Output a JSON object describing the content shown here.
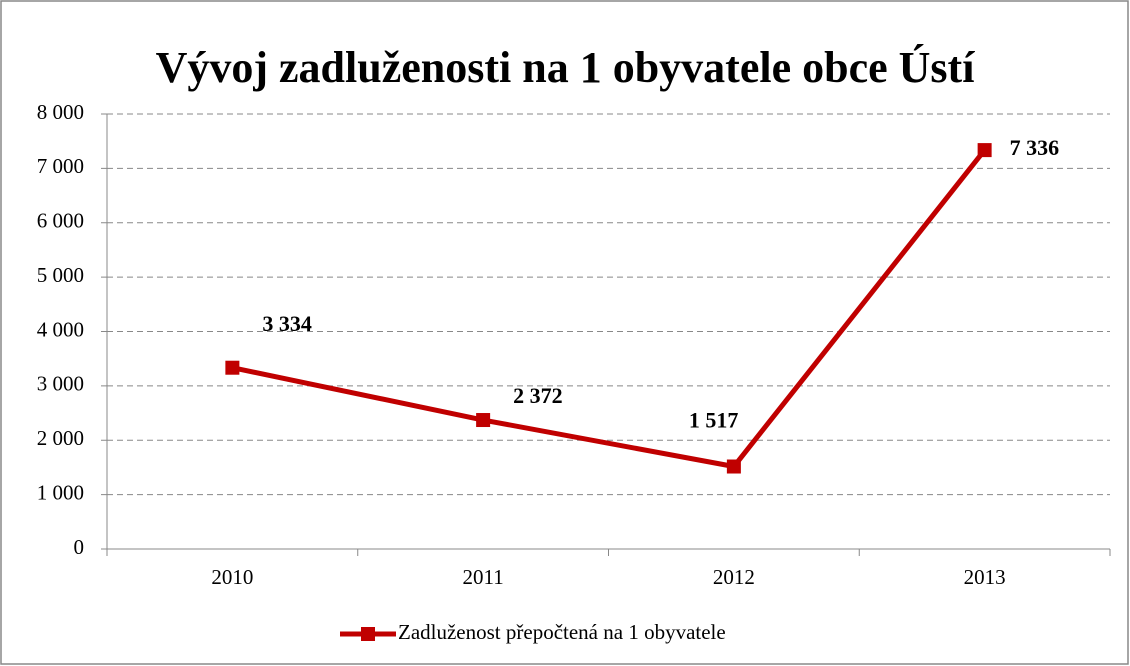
{
  "chart_data": {
    "type": "line",
    "title": "Vývoj zadluženosti na 1 obyvatele obce Ústí",
    "categories": [
      "2010",
      "2011",
      "2012",
      "2013"
    ],
    "series": [
      {
        "name": "Zadluženost přepočtená na 1 obyvatele",
        "color": "#c00000",
        "values": [
          3334,
          2372,
          1517,
          7336
        ],
        "value_labels": [
          "3 334",
          "2 372",
          "1 517",
          "7 336"
        ]
      }
    ],
    "ylim": [
      0,
      8000
    ],
    "yticks": [
      0,
      {
        "value": 1000,
        "label": "1 000"
      },
      {
        "value": 2000,
        "label": "2 000"
      },
      {
        "value": 3000,
        "label": "3 000"
      },
      {
        "value": 4000,
        "label": "4 000"
      },
      {
        "value": 5000,
        "label": "5 000"
      },
      {
        "value": 6000,
        "label": "6 000"
      },
      {
        "value": 7000,
        "label": "7 000"
      },
      {
        "value": 8000,
        "label": "8 000"
      }
    ],
    "grid": true,
    "legend": "bottom"
  }
}
